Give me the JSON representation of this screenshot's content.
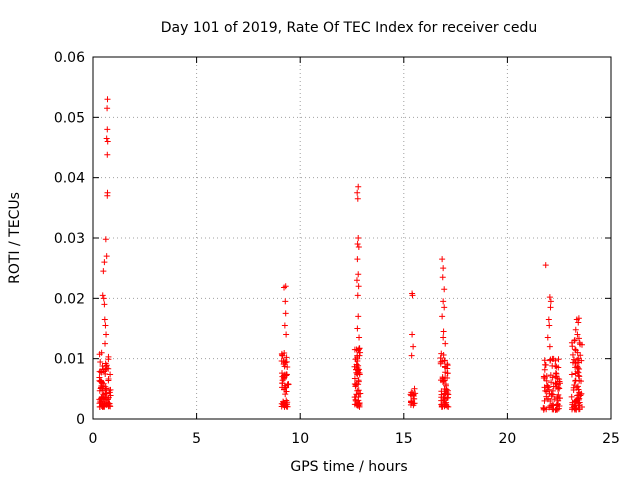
{
  "chart_data": {
    "type": "scatter",
    "title": "Day 101 of 2019, Rate Of TEC Index for receiver cedu",
    "xlabel": "GPS time / hours",
    "ylabel": "ROTI / TECUs",
    "xlim": [
      0,
      25
    ],
    "ylim": [
      0,
      0.06
    ],
    "x_ticks": [
      0,
      5,
      10,
      15,
      20,
      25
    ],
    "x_tick_labels": [
      "0",
      "5",
      "10",
      "15",
      "20",
      "25"
    ],
    "y_ticks": [
      0,
      0.01,
      0.02,
      0.03,
      0.04,
      0.05,
      0.06
    ],
    "y_tick_labels": [
      "0",
      "0.01",
      "0.02",
      "0.03",
      "0.04",
      "0.05",
      "0.06"
    ],
    "grid": true,
    "marker": "plus",
    "color": "#ff0000",
    "series": [
      {
        "name": "ROTI",
        "clusters": [
          {
            "x_range": [
              0.3,
              0.85
            ],
            "y_min": 0.002,
            "y_max": 0.011,
            "count": 90,
            "outliers": [
              [
                0.7,
                0.053
              ],
              [
                0.68,
                0.0515
              ],
              [
                0.69,
                0.048
              ],
              [
                0.66,
                0.0465
              ],
              [
                0.71,
                0.046
              ],
              [
                0.69,
                0.0438
              ],
              [
                0.7,
                0.0375
              ],
              [
                0.69,
                0.037
              ],
              [
                0.62,
                0.0298
              ],
              [
                0.66,
                0.027
              ],
              [
                0.55,
                0.026
              ],
              [
                0.5,
                0.0245
              ],
              [
                0.47,
                0.0205
              ],
              [
                0.52,
                0.02
              ],
              [
                0.55,
                0.019
              ],
              [
                0.57,
                0.0165
              ],
              [
                0.6,
                0.0155
              ],
              [
                0.63,
                0.014
              ],
              [
                0.58,
                0.0125
              ]
            ]
          },
          {
            "x_range": [
              9.1,
              9.45
            ],
            "y_min": 0.002,
            "y_max": 0.012,
            "count": 55,
            "outliers": [
              [
                9.3,
                0.022
              ],
              [
                9.22,
                0.0218
              ],
              [
                9.28,
                0.0195
              ],
              [
                9.3,
                0.0175
              ],
              [
                9.26,
                0.0155
              ],
              [
                9.32,
                0.014
              ]
            ]
          },
          {
            "x_range": [
              12.6,
              12.9
            ],
            "y_min": 0.002,
            "y_max": 0.012,
            "count": 60,
            "outliers": [
              [
                12.8,
                0.0385
              ],
              [
                12.75,
                0.0375
              ],
              [
                12.78,
                0.0365
              ],
              [
                12.8,
                0.03
              ],
              [
                12.77,
                0.029
              ],
              [
                12.83,
                0.0285
              ],
              [
                12.76,
                0.0265
              ],
              [
                12.8,
                0.024
              ],
              [
                12.74,
                0.023
              ],
              [
                12.82,
                0.022
              ],
              [
                12.78,
                0.0205
              ],
              [
                12.8,
                0.017
              ],
              [
                12.76,
                0.015
              ],
              [
                12.84,
                0.0135
              ]
            ]
          },
          {
            "x_range": [
              15.3,
              15.55
            ],
            "y_min": 0.002,
            "y_max": 0.006,
            "count": 20,
            "outliers": [
              [
                15.4,
                0.0208
              ],
              [
                15.42,
                0.0205
              ],
              [
                15.4,
                0.014
              ],
              [
                15.45,
                0.012
              ],
              [
                15.38,
                0.0105
              ]
            ]
          },
          {
            "x_range": [
              16.75,
              17.15
            ],
            "y_min": 0.002,
            "y_max": 0.011,
            "count": 60,
            "outliers": [
              [
                16.85,
                0.0265
              ],
              [
                16.9,
                0.025
              ],
              [
                16.88,
                0.0235
              ],
              [
                16.95,
                0.0215
              ],
              [
                16.9,
                0.0195
              ],
              [
                16.95,
                0.0185
              ],
              [
                16.85,
                0.017
              ],
              [
                16.92,
                0.0145
              ],
              [
                16.9,
                0.0135
              ],
              [
                17.0,
                0.0125
              ]
            ]
          },
          {
            "x_range": [
              21.7,
              22.55
            ],
            "y_min": 0.0015,
            "y_max": 0.01,
            "count": 85,
            "outliers": [
              [
                21.85,
                0.0255
              ],
              [
                22.05,
                0.0202
              ],
              [
                22.1,
                0.0195
              ],
              [
                22.08,
                0.0185
              ],
              [
                22.0,
                0.0165
              ],
              [
                22.02,
                0.0155
              ],
              [
                21.95,
                0.0135
              ],
              [
                22.05,
                0.012
              ]
            ]
          },
          {
            "x_range": [
              23.1,
              23.6
            ],
            "y_min": 0.0015,
            "y_max": 0.0135,
            "count": 75,
            "outliers": [
              [
                23.45,
                0.0167
              ],
              [
                23.35,
                0.0165
              ],
              [
                23.42,
                0.016
              ],
              [
                23.3,
                0.0148
              ],
              [
                23.38,
                0.014
              ]
            ]
          }
        ]
      }
    ]
  }
}
